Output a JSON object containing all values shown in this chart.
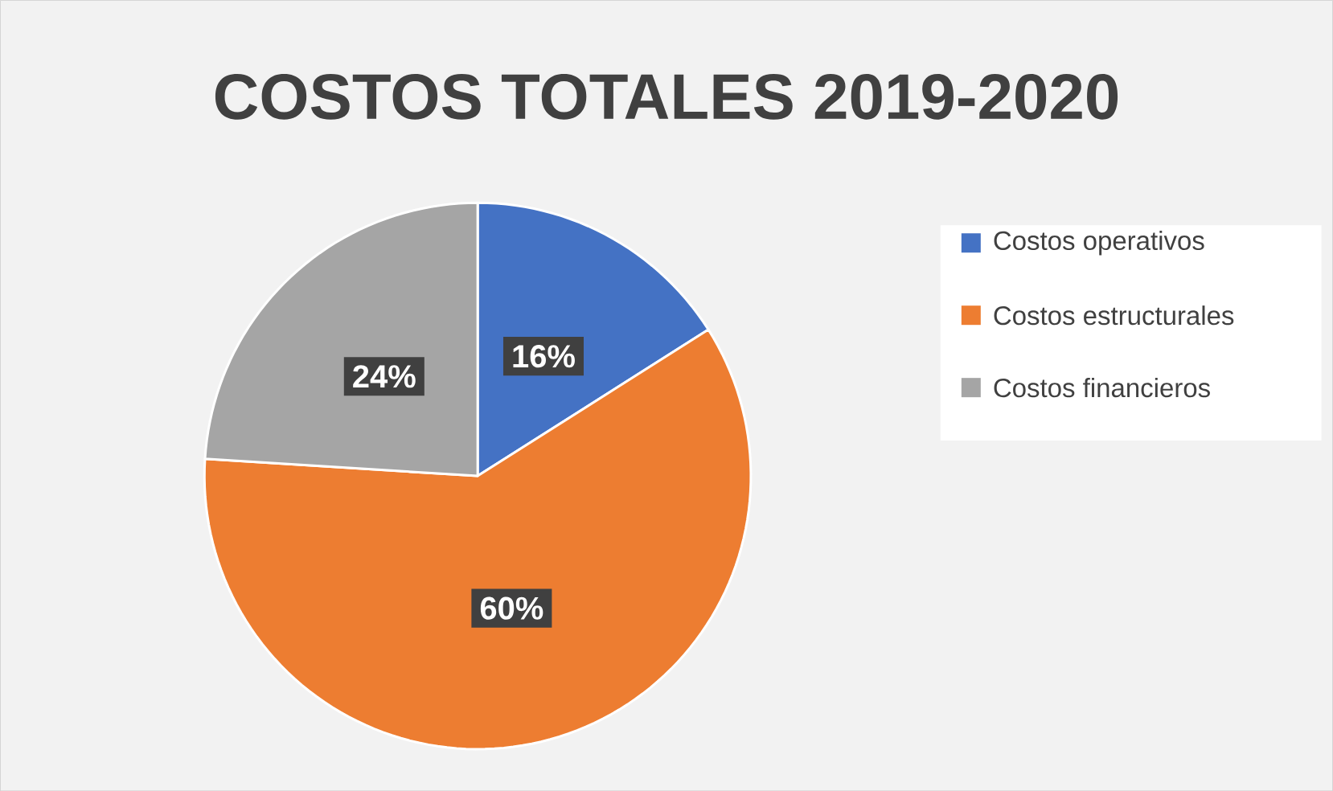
{
  "chart_data": {
    "type": "pie",
    "title": "COSTOS TOTALES 2019-2020",
    "categories": [
      "Costos operativos",
      "Costos estructurales",
      "Costos financieros"
    ],
    "values": [
      16,
      60,
      24
    ],
    "colors": [
      "#4472c4",
      "#ed7d31",
      "#a5a5a5"
    ],
    "value_labels": [
      "16%",
      "60%",
      "24%"
    ],
    "legend": "right"
  }
}
